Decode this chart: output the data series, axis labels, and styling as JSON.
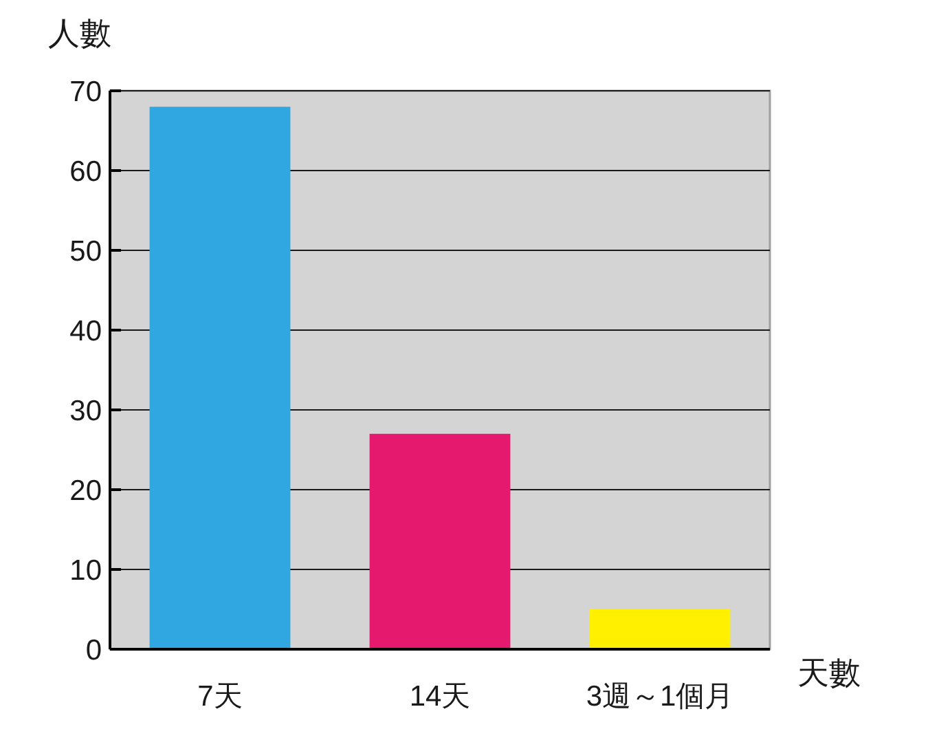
{
  "chart_data": {
    "type": "bar",
    "xlabel": "天數",
    "ylabel": "人數",
    "categories": [
      "7天",
      "14天",
      "3週～1個月"
    ],
    "values": [
      68,
      27,
      5
    ],
    "colors": [
      "#30a7e1",
      "#e5196e",
      "#fff000"
    ],
    "ylim": [
      0,
      70
    ],
    "yticks": [
      0,
      10,
      20,
      30,
      40,
      50,
      60,
      70
    ],
    "grid": "y"
  }
}
